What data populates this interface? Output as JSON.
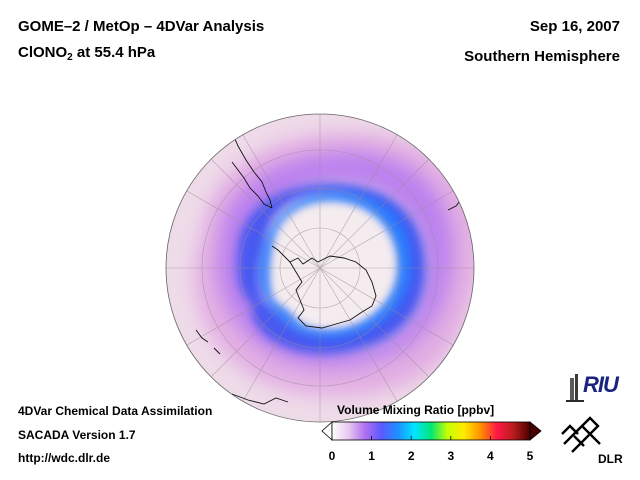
{
  "header": {
    "title_line1": "GOME–2 / MetOp – 4DVar Analysis",
    "title_line2_species": "ClONO",
    "title_line2_subscript": "2",
    "title_line2_rest": " at 55.4 hPa",
    "date": "Sep 16, 2007",
    "region": "Southern Hemisphere"
  },
  "footer": {
    "line1": "4DVar Chemical Data Assimilation",
    "line2": "SACADA Version 1.7",
    "line3": "http://wdc.dlr.de"
  },
  "colorbar": {
    "label": "Volume Mixing Ratio [ppbv]",
    "ticks": [
      "0",
      "1",
      "2",
      "3",
      "4",
      "5"
    ],
    "min": 0,
    "max": 5,
    "colors": [
      "#ffffff",
      "#e8c8f0",
      "#b070f0",
      "#5a5aff",
      "#1e90ff",
      "#00e5ff",
      "#00e676",
      "#c6ff00",
      "#ffea00",
      "#ff9100",
      "#ff1744",
      "#b71c1c",
      "#4a0000"
    ]
  },
  "logos": {
    "riu": "RIU",
    "dlr": "DLR"
  },
  "map": {
    "projection": "orthographic south-polar",
    "field": "ClONO2 volume mixing ratio",
    "level_hPa": 55.4,
    "background_ppbv": 0.3,
    "collar_ppbv": 0.75,
    "vortex_core_ppbv": 0.0
  }
}
